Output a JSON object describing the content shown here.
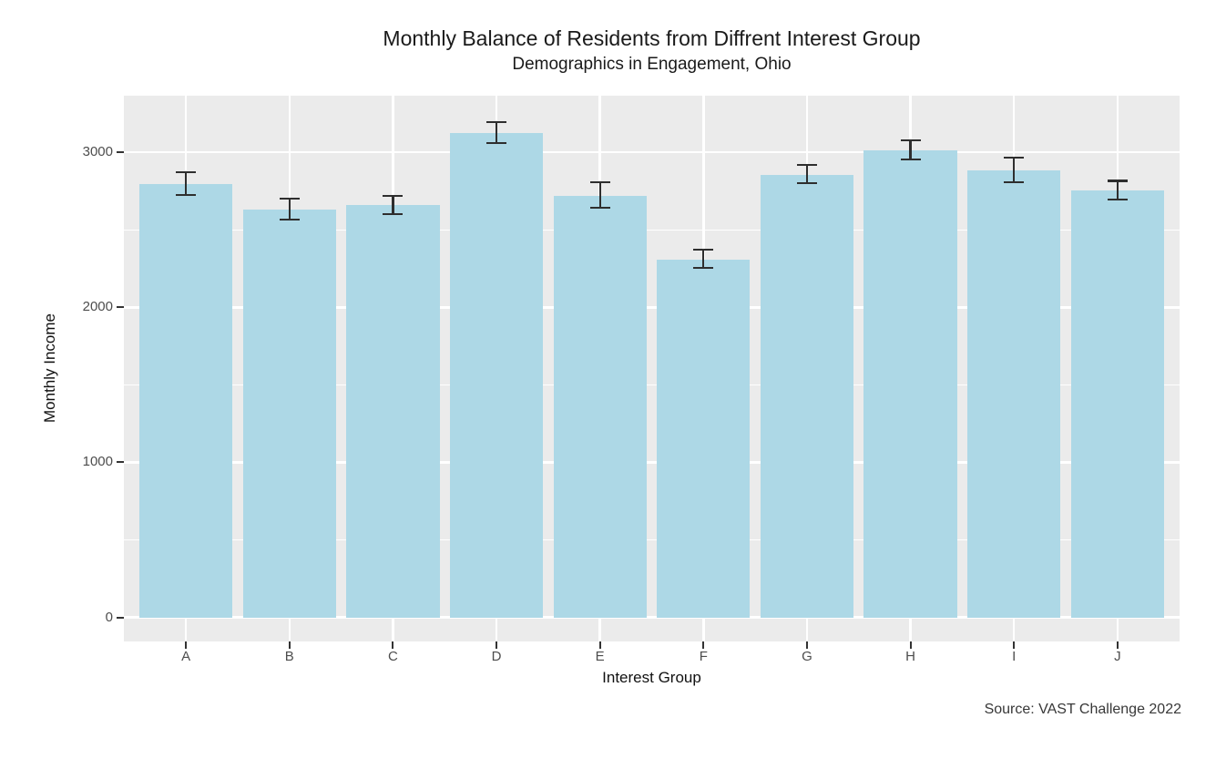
{
  "chart_data": {
    "type": "bar",
    "title": "Monthly Balance of Residents from Diffrent Interest Group",
    "subtitle": "Demographics in Engagement, Ohio",
    "caption": "Source: VAST Challenge 2022",
    "xlabel": "Interest Group",
    "ylabel": "Monthly Income",
    "categories": [
      "A",
      "B",
      "C",
      "D",
      "E",
      "F",
      "G",
      "H",
      "I",
      "J"
    ],
    "values": [
      2795,
      2630,
      2660,
      3125,
      2720,
      2310,
      2855,
      3015,
      2885,
      2755
    ],
    "error_low": [
      2725,
      2565,
      2600,
      3060,
      2640,
      2255,
      2800,
      2955,
      2805,
      2695
    ],
    "error_high": [
      2870,
      2700,
      2720,
      3195,
      2805,
      2370,
      2920,
      3075,
      2965,
      2815
    ],
    "yticks": [
      0,
      1000,
      2000,
      3000
    ],
    "yticks_minor": [
      500,
      1500,
      2500
    ],
    "ylim": [
      -155,
      3365
    ],
    "bar_rel_width": 0.9,
    "grid": true,
    "legend": "none",
    "colors": {
      "bar_fill": "#ADD8E6",
      "error_bar": "#2E2E2E",
      "panel_bg": "#EBEBEB",
      "grid_line": "#FFFFFF",
      "axis_text": "#4D4D4D",
      "title_text": "#1A1A1A",
      "tick_mark": "#333333"
    }
  }
}
